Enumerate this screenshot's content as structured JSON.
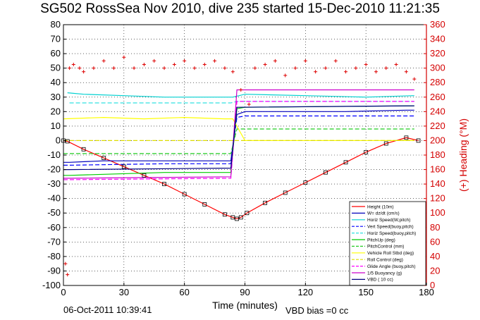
{
  "title": "SG502 RossSea Nov 2010, dive 235 started 15-Dec-2010 11:21:35",
  "footer": {
    "timestamp": "06-Oct-2011 10:39:41",
    "vbd_bias": "VBD bias =0 cc"
  },
  "chart_data": {
    "type": "line",
    "title": "SG502 RossSea Nov 2010, dive 235 started 15-Dec-2010 11:21:35",
    "xlabel": "Time (minutes)",
    "ylabel": "",
    "y2label": "(+) Heading (°M)",
    "xlim": [
      0,
      180
    ],
    "ylim": [
      -100,
      80
    ],
    "y2lim": [
      0,
      360
    ],
    "xticks": [
      0,
      30,
      60,
      90,
      120,
      150,
      180
    ],
    "yticks": [
      -100,
      -90,
      -80,
      -70,
      -60,
      -50,
      -40,
      -30,
      -20,
      -10,
      0,
      10,
      20,
      30,
      40,
      50,
      60,
      70,
      80
    ],
    "y2ticks": [
      0,
      20,
      40,
      60,
      80,
      100,
      120,
      140,
      160,
      180,
      200,
      220,
      240,
      260,
      280,
      300,
      320,
      340,
      360
    ],
    "grid": true,
    "legend_position": "bottom-right",
    "colors": {
      "height": "#ff0000",
      "w": "#0000bb",
      "horz_speed_w": "#00d0d0",
      "vert_speed": "#0000ff",
      "horz_speed_buoy": "#30e0e0",
      "pitch_up": "#00cc00",
      "pitch_control": "#22cc22",
      "vehicle_roll": "#ffff00",
      "roll_control": "#dddd00",
      "glide_angle": "#ff00ff",
      "buoyancy": "#cc00cc",
      "vbd": "#000080",
      "heading": "#dd0000"
    },
    "series": [
      {
        "name": "Height (10m)",
        "style": "solid",
        "color": "#ff0000",
        "x": [
          0,
          2,
          10,
          20,
          30,
          40,
          50,
          60,
          70,
          80,
          84,
          86,
          88,
          91,
          100,
          110,
          120,
          130,
          140,
          150,
          160,
          170,
          176
        ],
        "y": [
          0,
          -0.5,
          -6,
          -12,
          -18,
          -24,
          -30,
          -37,
          -44,
          -51,
          -53,
          -54,
          -53,
          -50,
          -43,
          -36,
          -29,
          -22,
          -15,
          -8,
          -2,
          2,
          0
        ]
      },
      {
        "name": "W= dz/dt (cm/s)",
        "style": "solid",
        "color": "#0000bb",
        "x": [
          0,
          3,
          20,
          50,
          83,
          86,
          90,
          110,
          140,
          170,
          174
        ],
        "y": [
          -15,
          -15,
          -14,
          -14,
          -14,
          18,
          20,
          20,
          20,
          21,
          21
        ]
      },
      {
        "name": "Horiz Speed(W,pitch)",
        "style": "solid",
        "color": "#00d0d0",
        "x": [
          2,
          10,
          30,
          50,
          80,
          84,
          90,
          120,
          150,
          174
        ],
        "y": [
          33,
          32,
          31,
          30,
          30,
          30,
          32,
          31,
          30,
          31
        ]
      },
      {
        "name": "Vert Speed(buoy,pitch)",
        "style": "dashed",
        "color": "#0000ff",
        "x": [
          0,
          3,
          50,
          83,
          86,
          90,
          174
        ],
        "y": [
          -17,
          -17,
          -16,
          -16,
          16,
          17,
          17
        ]
      },
      {
        "name": "Horiz Speed(buoy,pitch)",
        "style": "dashed",
        "color": "#30e0e0",
        "x": [
          3,
          83,
          86,
          174
        ],
        "y": [
          26,
          26,
          27,
          27
        ]
      },
      {
        "name": "PitchUp (deg)",
        "style": "solid",
        "color": "#00cc00",
        "x": [
          0,
          3,
          50,
          83,
          86,
          90,
          174
        ],
        "y": [
          -24,
          -24,
          -22,
          -22,
          22,
          23,
          24
        ]
      },
      {
        "name": "PitchControl (mm)",
        "style": "dashed",
        "color": "#22cc22",
        "x": [
          0,
          83,
          86,
          174
        ],
        "y": [
          -9,
          -9,
          8,
          8
        ]
      },
      {
        "name": "Vehicle Roll Stbd (deg)",
        "style": "solid",
        "color": "#ffff00",
        "x": [
          0,
          20,
          40,
          60,
          80,
          84,
          90,
          120,
          150,
          174
        ],
        "y": [
          15,
          16,
          15,
          16,
          15,
          15,
          0,
          0,
          0,
          0
        ]
      },
      {
        "name": "Roll Control (deg)",
        "style": "dashed",
        "color": "#dddd00",
        "x": [
          0,
          83,
          86,
          174
        ],
        "y": [
          0,
          0,
          0,
          0
        ]
      },
      {
        "name": "Glide Angle (buoy,pitch)",
        "style": "dashed",
        "color": "#ff00ff",
        "x": [
          0,
          3,
          83,
          86,
          174
        ],
        "y": [
          -27,
          -27,
          -26,
          27,
          27
        ]
      },
      {
        "name": "1/5 Buoyancy (g)",
        "style": "solid",
        "color": "#cc00cc",
        "x": [
          0,
          3,
          83,
          86,
          174
        ],
        "y": [
          -26,
          -26,
          -25,
          35,
          35
        ]
      },
      {
        "name": "VBD ( 10 cc)",
        "style": "solid",
        "color": "#000080",
        "x": [
          0,
          3,
          83,
          86,
          174
        ],
        "y": [
          -20,
          -20,
          -19,
          23,
          24
        ]
      }
    ],
    "heading_series": {
      "axis": "y2",
      "marker": "+",
      "color": "#dd0000",
      "x": [
        1,
        2,
        3,
        5,
        8,
        10,
        15,
        20,
        25,
        30,
        35,
        40,
        45,
        50,
        55,
        60,
        65,
        70,
        75,
        80,
        84,
        88,
        92,
        95,
        100,
        105,
        110,
        115,
        120,
        125,
        130,
        135,
        140,
        145,
        150,
        155,
        160,
        165,
        170,
        174
      ],
      "y": [
        30,
        15,
        300,
        305,
        300,
        295,
        300,
        310,
        300,
        315,
        300,
        305,
        310,
        300,
        305,
        310,
        300,
        305,
        310,
        300,
        295,
        270,
        250,
        300,
        305,
        310,
        290,
        300,
        310,
        295,
        300,
        310,
        295,
        300,
        305,
        295,
        300,
        305,
        295,
        285
      ]
    }
  }
}
